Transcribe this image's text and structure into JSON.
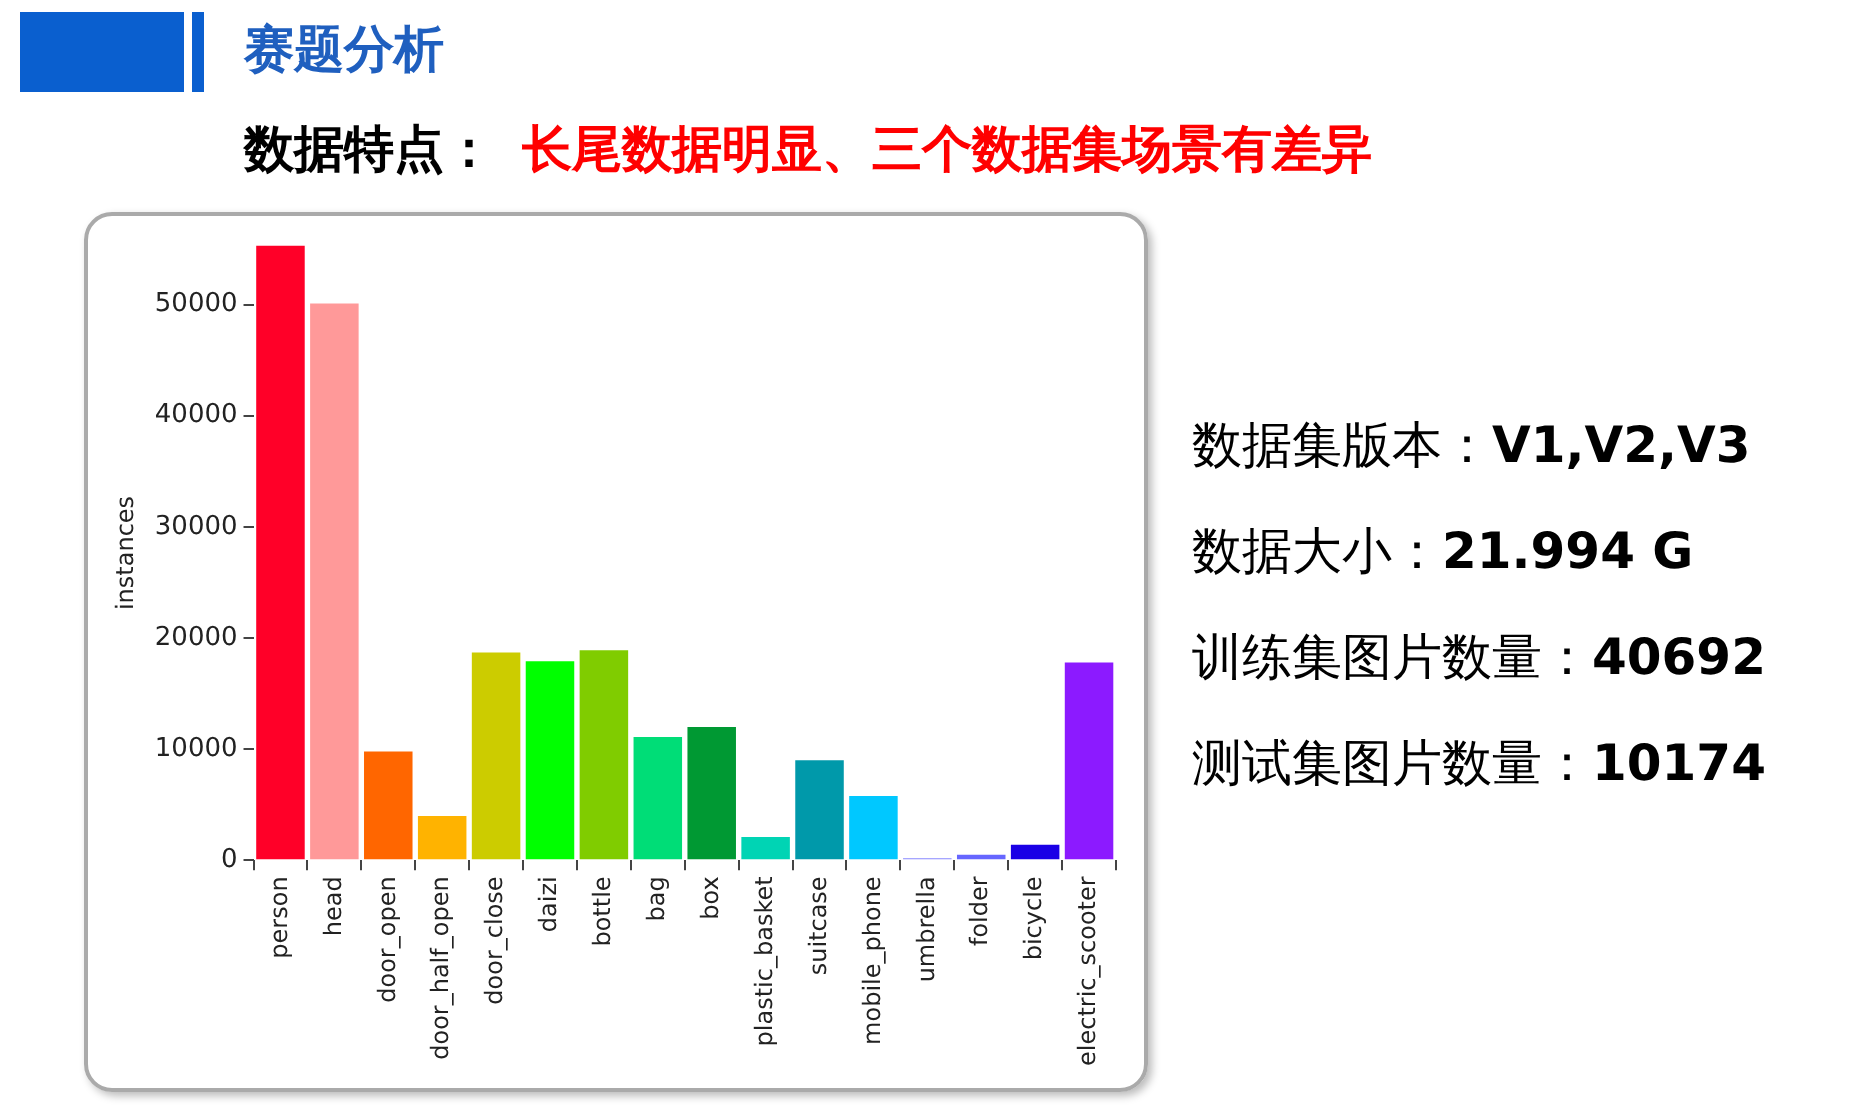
{
  "chart_data": {
    "type": "bar",
    "title": "赛题分析",
    "subtitle": "数据特点：",
    "annotations": [
      "长尾数据明显、三个数据集场景有差异",
      "数据集版本：V1,V2,V3",
      "数据大小：21.994 G",
      "训练集图片数量：40692",
      "测试集图片数量：10174"
    ],
    "ylabel": "instances",
    "categories": [
      "person",
      "head",
      "door_open",
      "door_half_open",
      "door_close",
      "daizi",
      "bottle",
      "bag",
      "box",
      "plastic_basket",
      "suitcase",
      "mobile_phone",
      "umbrella",
      "folder",
      "bicycle",
      "electric_scooter"
    ],
    "values": [
      55300,
      50100,
      9800,
      4000,
      18700,
      17900,
      18900,
      11100,
      12000,
      2100,
      9000,
      5800,
      200,
      500,
      1400,
      17800
    ],
    "colors": [
      "#ff0028",
      "#ff9999",
      "#ff6600",
      "#ffb300",
      "#cccc00",
      "#00ff00",
      "#80cc00",
      "#00dd77",
      "#009933",
      "#00d4b4",
      "#0099aa",
      "#00c8ff",
      "#8888ff",
      "#6666ff",
      "#1a00e6",
      "#8c1aff"
    ],
    "ylim": [
      0,
      55300
    ],
    "yticks": [
      0,
      10000,
      20000,
      30000,
      40000,
      50000
    ],
    "grid": false,
    "legend": false
  }
}
